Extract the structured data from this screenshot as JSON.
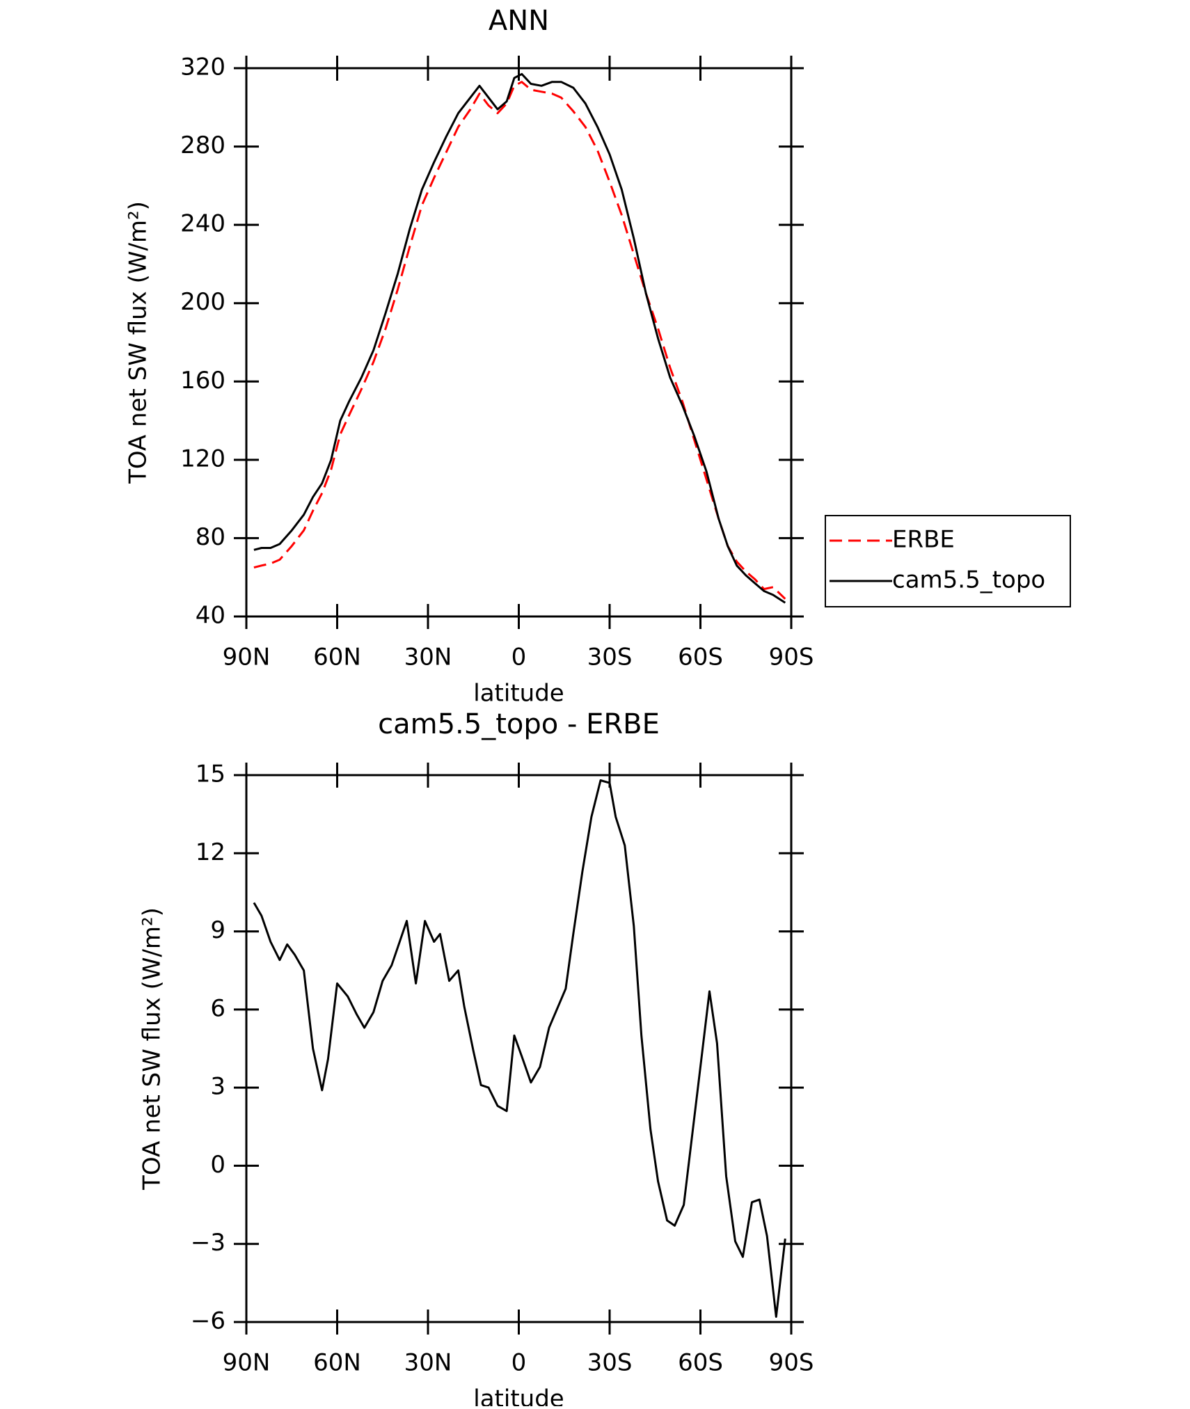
{
  "chart_data": [
    {
      "type": "line",
      "title": "ANN",
      "x_label": "latitude",
      "y_label": "TOA net SW flux (W/m²)",
      "x": [
        87.5,
        85,
        82,
        79,
        75,
        71,
        68,
        65,
        62,
        59,
        56,
        52,
        48,
        44,
        40,
        36,
        32,
        28,
        24,
        20,
        16,
        13,
        10,
        7,
        4,
        1.5,
        -1,
        -4,
        -7.5,
        -11,
        -14,
        -18,
        -22,
        -26,
        -30,
        -34,
        -38,
        -42,
        -46,
        -50,
        -54,
        -58,
        -62,
        -66,
        -69,
        -72,
        -75,
        -78,
        -81,
        -84,
        -88
      ],
      "series": [
        {
          "name": "ERBE",
          "color": "#ff0000",
          "style": "dashed",
          "values": [
            65,
            66,
            67,
            69,
            76,
            84,
            94,
            103,
            115,
            133,
            143,
            156,
            170,
            187,
            207,
            229,
            250,
            264,
            277,
            290,
            299,
            307,
            301,
            297,
            302,
            311,
            313,
            309,
            308,
            307,
            305,
            298,
            290,
            278,
            262,
            245,
            225,
            205,
            187,
            167,
            150,
            130,
            110,
            90,
            76,
            68,
            63,
            59,
            54,
            55,
            49
          ]
        },
        {
          "name": "cam5.5_topo",
          "color": "#000000",
          "style": "solid",
          "values": [
            74,
            75,
            75,
            77,
            84,
            92,
            101,
            108,
            120,
            140,
            150,
            162,
            176,
            195,
            215,
            238,
            258,
            272,
            285,
            297,
            305,
            311,
            305,
            299,
            303,
            315,
            317,
            312,
            311,
            313,
            313,
            310,
            302,
            290,
            276,
            258,
            233,
            205,
            182,
            162,
            148,
            132,
            114,
            90,
            76,
            66,
            61,
            57,
            53,
            51,
            47
          ]
        }
      ],
      "xlim": [
        90,
        -90
      ],
      "xticks": [
        {
          "value": 90,
          "label": "90N"
        },
        {
          "value": 60,
          "label": "60N"
        },
        {
          "value": 30,
          "label": "30N"
        },
        0,
        {
          "value": -30,
          "label": "30S"
        },
        {
          "value": -60,
          "label": "60S"
        },
        {
          "value": -90,
          "label": "90S"
        }
      ],
      "ylim": [
        40,
        320
      ],
      "yticks": [
        40,
        80,
        120,
        160,
        200,
        240,
        280,
        320
      ],
      "legend": "right"
    },
    {
      "type": "line",
      "title": "cam5.5_topo - ERBE",
      "x_label": "latitude",
      "y_label": "TOA net SW flux (W/m²)",
      "x": [
        87.5,
        85,
        82,
        79,
        76.5,
        74,
        71,
        68,
        65,
        63,
        60,
        56.5,
        53.5,
        51,
        48,
        45,
        42,
        37,
        34,
        31,
        28,
        26,
        23,
        20,
        18,
        15,
        12.5,
        10,
        7,
        4,
        1.5,
        -1,
        -4,
        -7,
        -10,
        -15.5,
        -18,
        -21,
        -24,
        -27,
        -30,
        -32,
        -35,
        -38,
        -40.5,
        -43.5,
        -46,
        -49,
        -51.5,
        -54.5,
        -57,
        -60,
        -63,
        -65.5,
        -68.5,
        -71.5,
        -74,
        -77,
        -79.5,
        -82,
        -85,
        -88
      ],
      "series": [
        {
          "name": "cam5.5_topo - ERBE",
          "color": "#000000",
          "style": "solid",
          "values": [
            10.1,
            9.6,
            8.6,
            7.9,
            8.5,
            8.1,
            7.5,
            4.5,
            2.9,
            4.1,
            7.0,
            6.5,
            5.8,
            5.3,
            5.9,
            7.1,
            7.7,
            9.4,
            7.0,
            9.4,
            8.6,
            8.9,
            7.1,
            7.5,
            6.1,
            4.4,
            3.1,
            3.0,
            2.3,
            2.1,
            5.0,
            4.2,
            3.2,
            3.8,
            5.3,
            6.8,
            8.9,
            11.3,
            13.4,
            14.8,
            14.7,
            13.4,
            12.3,
            9.2,
            5.0,
            1.4,
            -0.6,
            -2.1,
            -2.3,
            -1.5,
            0.9,
            3.8,
            6.7,
            4.7,
            -0.4,
            -2.9,
            -3.5,
            -1.4,
            -1.3,
            -2.7,
            -5.8,
            -2.8
          ]
        }
      ],
      "xlim": [
        90,
        -90
      ],
      "xticks": [
        {
          "value": 90,
          "label": "90N"
        },
        {
          "value": 60,
          "label": "60N"
        },
        {
          "value": 30,
          "label": "30N"
        },
        0,
        {
          "value": -30,
          "label": "30S"
        },
        {
          "value": -60,
          "label": "60S"
        },
        {
          "value": -90,
          "label": "90S"
        }
      ],
      "ylim": [
        -6,
        15
      ],
      "yticks": [
        {
          "value": -6,
          "label": "−6"
        },
        {
          "value": -3,
          "label": "−3"
        },
        0,
        3,
        6,
        9,
        12,
        15
      ]
    }
  ]
}
